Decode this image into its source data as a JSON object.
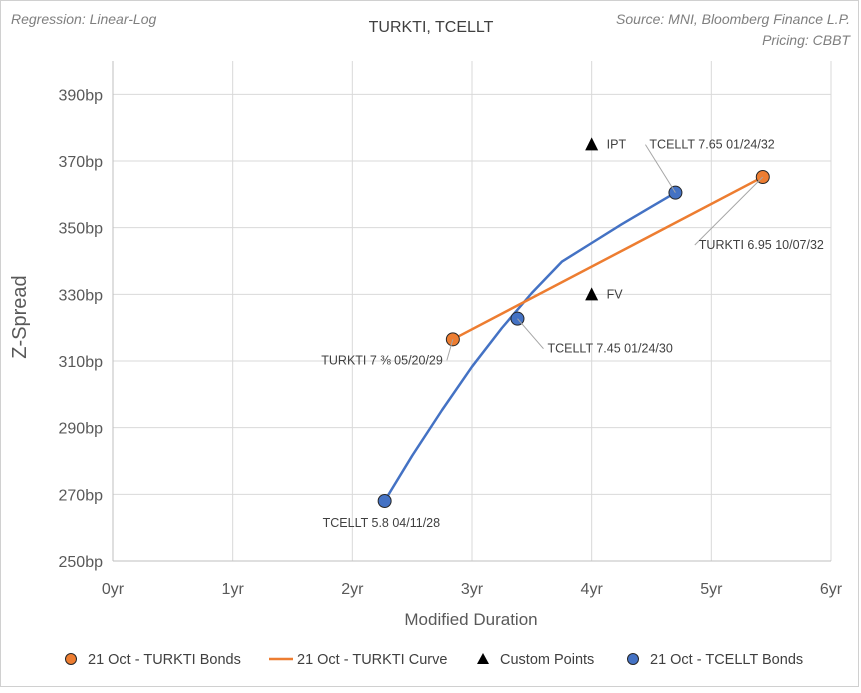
{
  "chart_data": {
    "type": "scatter",
    "title": "TURKTI, TCELLT",
    "notes": {
      "regression": "Regression: Linear-Log",
      "source": "Source: MNI, Bloomberg Finance L.P.",
      "pricing": "Pricing: CBBT"
    },
    "xlabel": "Modified Duration",
    "ylabel": "Z-Spread",
    "xlim": [
      0,
      6
    ],
    "ylim": [
      250,
      400
    ],
    "x_ticks": [
      0,
      1,
      2,
      3,
      4,
      5,
      6
    ],
    "x_tick_labels": [
      "0yr",
      "1yr",
      "2yr",
      "3yr",
      "4yr",
      "5yr",
      "6yr"
    ],
    "y_ticks": [
      250,
      270,
      290,
      310,
      330,
      350,
      370,
      390
    ],
    "y_tick_labels": [
      "250bp",
      "270bp",
      "290bp",
      "310bp",
      "330bp",
      "350bp",
      "370bp",
      "390bp"
    ],
    "grid": true,
    "legend_position": "bottom",
    "colors": {
      "turkti": "#ed7d31",
      "tcellt": "#4472c4",
      "custom": "#000000",
      "grid": "#d9d9d9",
      "leader": "#a6a6a6"
    },
    "series": [
      {
        "name": "21 Oct - TURKTI Bonds",
        "kind": "points",
        "points": [
          {
            "x": 2.84,
            "y": 316.5,
            "label": "TURKTI 7 ⅜ 05/20/29"
          },
          {
            "x": 5.43,
            "y": 365.2,
            "label": "TURKTI 6.95 10/07/32"
          }
        ]
      },
      {
        "name": "21 Oct - TURKTI Curve",
        "kind": "line",
        "x": [
          2.84,
          5.43
        ],
        "y": [
          316.5,
          365.2
        ]
      },
      {
        "name": "Custom Points",
        "kind": "triangles",
        "points": [
          {
            "x": 4.0,
            "y": 375.0,
            "label": "IPT"
          },
          {
            "x": 4.0,
            "y": 330.0,
            "label": "FV"
          }
        ]
      },
      {
        "name": "21 Oct - TCELLT Bonds",
        "kind": "points",
        "points": [
          {
            "x": 2.27,
            "y": 268.0,
            "label": "TCELLT 5.8 04/11/28"
          },
          {
            "x": 3.38,
            "y": 322.7,
            "label": "TCELLT 7.45 01/24/30"
          },
          {
            "x": 4.7,
            "y": 360.5,
            "label": "TCELLT 7.65 01/24/32"
          }
        ]
      }
    ],
    "tcellt_curve": {
      "x": [
        2.27,
        2.5,
        2.75,
        3.0,
        3.25,
        3.5,
        3.75,
        4.0,
        4.25,
        4.5,
        4.7
      ],
      "y": [
        268.0,
        281.6,
        295.3,
        308.3,
        319.9,
        330.4,
        339.8,
        345.4,
        351.0,
        356.3,
        360.5
      ]
    }
  }
}
